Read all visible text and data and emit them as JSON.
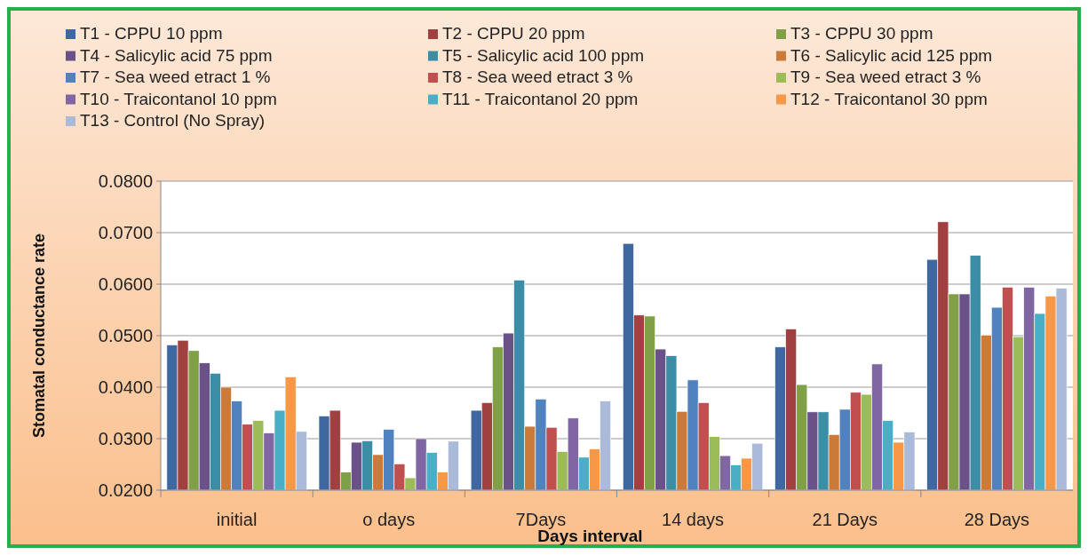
{
  "chart_data": {
    "type": "bar",
    "xlabel": "Days interval",
    "ylabel": "Stomatal conductance rate",
    "categories": [
      "initial",
      "o days",
      "7Days",
      "14 days",
      "21 Days",
      "28 Days"
    ],
    "ylim": [
      0.02,
      0.08
    ],
    "yticks": [
      {
        "value": 0.02,
        "label": "0.0200"
      },
      {
        "value": 0.03,
        "label": "0.0300"
      },
      {
        "value": 0.04,
        "label": "0.0400"
      },
      {
        "value": 0.05,
        "label": "0.0500"
      },
      {
        "value": 0.06,
        "label": "0.0600"
      },
      {
        "value": 0.07,
        "label": "0.0700"
      },
      {
        "value": 0.08,
        "label": "0.0800"
      }
    ],
    "grid": "y",
    "legend": "top",
    "series": [
      {
        "name": "T1 - CPPU 10 ppm",
        "color": "#4068a0",
        "values": [
          0.0482,
          0.0344,
          0.0355,
          0.0679,
          0.0478,
          0.0648
        ]
      },
      {
        "name": "T2 - CPPU 20 ppm",
        "color": "#a04040",
        "values": [
          0.0491,
          0.0355,
          0.037,
          0.054,
          0.0513,
          0.0721
        ]
      },
      {
        "name": "T3 -  CPPU 30 ppm",
        "color": "#80a048",
        "values": [
          0.0471,
          0.0235,
          0.0478,
          0.0538,
          0.0405,
          0.0581
        ]
      },
      {
        "name": "T4 -  Salicylic acid 75 ppm",
        "color": "#6a5288",
        "values": [
          0.0447,
          0.0293,
          0.0505,
          0.0474,
          0.0352,
          0.0581
        ]
      },
      {
        "name": "T5 - Salicylic acid 100 ppm",
        "color": "#3c8ea6",
        "values": [
          0.0427,
          0.0296,
          0.0608,
          0.0461,
          0.0352,
          0.0656
        ]
      },
      {
        "name": "T6 - Salicylic acid 125 ppm",
        "color": "#cc7a38",
        "values": [
          0.04,
          0.0269,
          0.0324,
          0.0353,
          0.0308,
          0.0501
        ]
      },
      {
        "name": "T7 - Sea weed etract 1 %",
        "color": "#5082c0",
        "values": [
          0.0373,
          0.0318,
          0.0377,
          0.0414,
          0.0357,
          0.0555
        ]
      },
      {
        "name": "T8 -  Sea weed etract 3 %",
        "color": "#c05050",
        "values": [
          0.0328,
          0.0251,
          0.0322,
          0.037,
          0.039,
          0.0594
        ]
      },
      {
        "name": "T9 - Sea weed etract 3 %",
        "color": "#9cbc58",
        "values": [
          0.0335,
          0.0224,
          0.0275,
          0.0304,
          0.0386,
          0.0498
        ]
      },
      {
        "name": "T10 -  Traicontanol 10 ppm",
        "color": "#8066a2",
        "values": [
          0.0311,
          0.03,
          0.034,
          0.0267,
          0.0445,
          0.0594
        ]
      },
      {
        "name": "T11 - Traicontanol 20 ppm",
        "color": "#4aaec6",
        "values": [
          0.0355,
          0.0273,
          0.0264,
          0.0249,
          0.0335,
          0.0543
        ]
      },
      {
        "name": "T12 - Traicontanol 30 ppm",
        "color": "#f69848",
        "values": [
          0.042,
          0.0235,
          0.028,
          0.0262,
          0.0293,
          0.0577
        ]
      },
      {
        "name": "T13 - Control (No Spray)",
        "color": "#aabad8",
        "values": [
          0.0314,
          0.0295,
          0.0373,
          0.0291,
          0.0313,
          0.0592
        ]
      }
    ]
  }
}
